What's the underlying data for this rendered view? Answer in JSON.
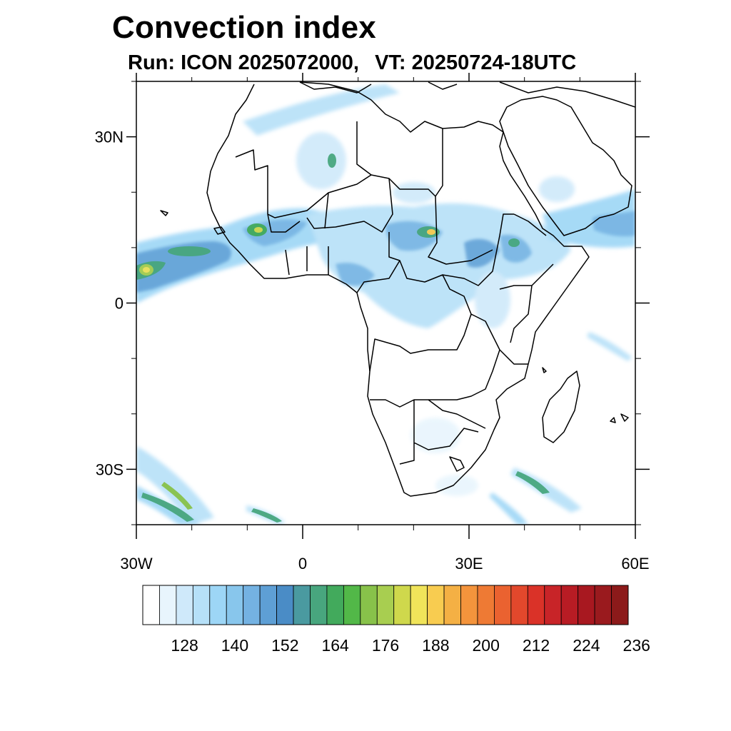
{
  "title": "Convection index",
  "subtitle": {
    "run_label": "Run:",
    "run_value": "ICON 2025072000,",
    "vt_label": "VT:",
    "vt_value": "20250724-18UTC"
  },
  "map": {
    "region": "Africa",
    "lon_range": [
      -30,
      60
    ],
    "lat_range": [
      -40,
      40
    ],
    "lat_ticks": [
      {
        "value": 30,
        "label": "30N"
      },
      {
        "value": 0,
        "label": "0"
      },
      {
        "value": -30,
        "label": "30S"
      }
    ],
    "lon_ticks": [
      {
        "value": -30,
        "label": "30W"
      },
      {
        "value": 0,
        "label": "0"
      },
      {
        "value": 30,
        "label": "30E"
      },
      {
        "value": 60,
        "label": "60E"
      }
    ],
    "minor_lat_ticks": [
      -40,
      -20,
      -10,
      10,
      20,
      40
    ],
    "minor_lon_ticks": [
      -20,
      -10,
      10,
      20,
      40,
      50
    ]
  },
  "colorbar": {
    "labels": [
      "128",
      "140",
      "152",
      "164",
      "176",
      "188",
      "200",
      "212",
      "224",
      "236"
    ],
    "colors": [
      "#ffffff",
      "#e8f5fd",
      "#cfe9fa",
      "#b6e0f8",
      "#9dd6f6",
      "#88c6ec",
      "#74b2e2",
      "#5e9fd5",
      "#4a8cc6",
      "#4a9aa0",
      "#48a67e",
      "#42aa5c",
      "#52b848",
      "#88c24a",
      "#a8ce50",
      "#cfd84c",
      "#f0e45a",
      "#f8cc50",
      "#f4b044",
      "#f4943c",
      "#ee7a34",
      "#ea6230",
      "#e2482c",
      "#da3228",
      "#c82428",
      "#b81c24",
      "#a81820",
      "#9a1a1e",
      "#8c1a1a"
    ]
  }
}
